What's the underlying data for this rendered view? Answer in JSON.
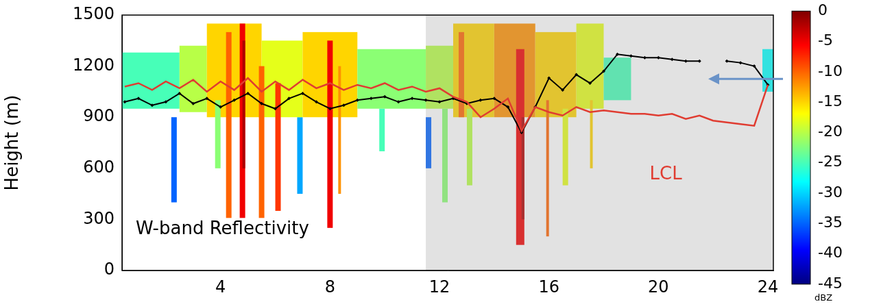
{
  "chart_data": {
    "type": "line",
    "y_label": "Height (m)",
    "x": [
      0.5,
      1,
      1.5,
      2,
      2.5,
      3,
      3.5,
      4,
      4.5,
      5,
      5.5,
      6,
      6.5,
      7,
      7.5,
      8,
      8.5,
      9,
      9.5,
      10,
      10.5,
      11,
      11.5,
      12,
      12.5,
      13,
      13.5,
      14,
      14.5,
      15,
      15.5,
      16,
      16.5,
      17,
      17.5,
      18,
      18.5,
      19,
      19.5,
      20,
      20.5,
      21,
      21.5,
      22,
      22.5,
      23,
      23.5,
      24
    ],
    "series": [
      {
        "color": "#000000",
        "marker": "diamond",
        "line_style": "solid",
        "values": [
          990,
          1010,
          970,
          990,
          1040,
          980,
          1010,
          960,
          1000,
          1040,
          980,
          950,
          1010,
          1040,
          990,
          950,
          970,
          1000,
          1010,
          1020,
          990,
          1010,
          1000,
          990,
          1010,
          980,
          1000,
          1010,
          960,
          810,
          960,
          1130,
          1060,
          1150,
          1100,
          1170,
          1270,
          1260,
          1250,
          1250,
          1240,
          1230,
          1230,
          null,
          1230,
          1220,
          1200,
          1090
        ]
      },
      {
        "name": "LCL",
        "color": "#e03c31",
        "marker": "none",
        "line_style": "solid",
        "values": [
          1080,
          1100,
          1060,
          1110,
          1070,
          1120,
          1050,
          1110,
          1060,
          1130,
          1050,
          1110,
          1060,
          1120,
          1070,
          1100,
          1060,
          1090,
          1070,
          1100,
          1060,
          1080,
          1050,
          1070,
          1020,
          990,
          900,
          950,
          1010,
          820,
          960,
          930,
          910,
          960,
          930,
          940,
          930,
          920,
          920,
          910,
          920,
          890,
          910,
          880,
          870,
          860,
          850,
          1090
        ]
      }
    ],
    "xlim": [
      0.4,
      24.2
    ],
    "ylim": [
      0,
      1500
    ],
    "xticks": [
      4,
      8,
      12,
      16,
      20,
      24
    ],
    "yticks": [
      0,
      300,
      600,
      900,
      1200,
      1500
    ],
    "grid": false,
    "reflectivity": {
      "cells": [
        [
          2.2,
          2.4,
          400,
          900,
          -35
        ],
        [
          6.8,
          7.0,
          450,
          900,
          -32
        ],
        [
          11.5,
          11.7,
          600,
          900,
          -35
        ],
        [
          0.4,
          2.5,
          950,
          1280,
          -25
        ],
        [
          2.5,
          3.5,
          930,
          1320,
          -20
        ],
        [
          3.5,
          5.5,
          900,
          1450,
          -15
        ],
        [
          5.5,
          7.0,
          900,
          1350,
          -18
        ],
        [
          7.0,
          9.0,
          900,
          1400,
          -15
        ],
        [
          9.0,
          11.5,
          950,
          1300,
          -22
        ],
        [
          11.5,
          12.5,
          950,
          1320,
          -20
        ],
        [
          12.5,
          14.0,
          900,
          1450,
          -15
        ],
        [
          14.0,
          15.5,
          900,
          1450,
          -12
        ],
        [
          15.5,
          17.0,
          900,
          1400,
          -15
        ],
        [
          17.0,
          18.0,
          950,
          1450,
          -18
        ],
        [
          18.0,
          19.0,
          1000,
          1250,
          -25
        ],
        [
          23.8,
          24.2,
          1050,
          1300,
          -28
        ],
        [
          3.8,
          4.0,
          600,
          1000,
          -22
        ],
        [
          9.8,
          10.0,
          700,
          950,
          -25
        ],
        [
          12.1,
          12.3,
          400,
          950,
          -22
        ],
        [
          13.0,
          13.2,
          500,
          950,
          -20
        ],
        [
          16.5,
          16.7,
          500,
          950,
          -18
        ],
        [
          17.5,
          17.6,
          600,
          1000,
          -15
        ],
        [
          12.7,
          12.9,
          900,
          1400,
          -10
        ],
        [
          4.2,
          4.4,
          300,
          1400,
          -10
        ],
        [
          4.7,
          4.9,
          250,
          1450,
          -5
        ],
        [
          4.8,
          4.9,
          600,
          1350,
          -2
        ],
        [
          5.4,
          5.6,
          300,
          1200,
          -10
        ],
        [
          6.0,
          6.2,
          350,
          1100,
          -8
        ],
        [
          7.9,
          8.1,
          250,
          1350,
          -5
        ],
        [
          8.3,
          8.4,
          450,
          1200,
          -12
        ],
        [
          14.8,
          15.1,
          150,
          1300,
          -5
        ],
        [
          15.0,
          15.1,
          300,
          900,
          -2
        ],
        [
          15.9,
          16.0,
          200,
          1000,
          -10
        ]
      ]
    },
    "colorbar": {
      "range": [
        -45,
        0
      ],
      "ticks": [
        -45,
        -40,
        -35,
        -30,
        -25,
        -20,
        -15,
        -10,
        -5,
        0
      ],
      "label": "dBZ"
    },
    "shaded_region": [
      11.5,
      24.2
    ],
    "annotations": [
      {
        "text": "W-band Reflectivity"
      }
    ]
  }
}
